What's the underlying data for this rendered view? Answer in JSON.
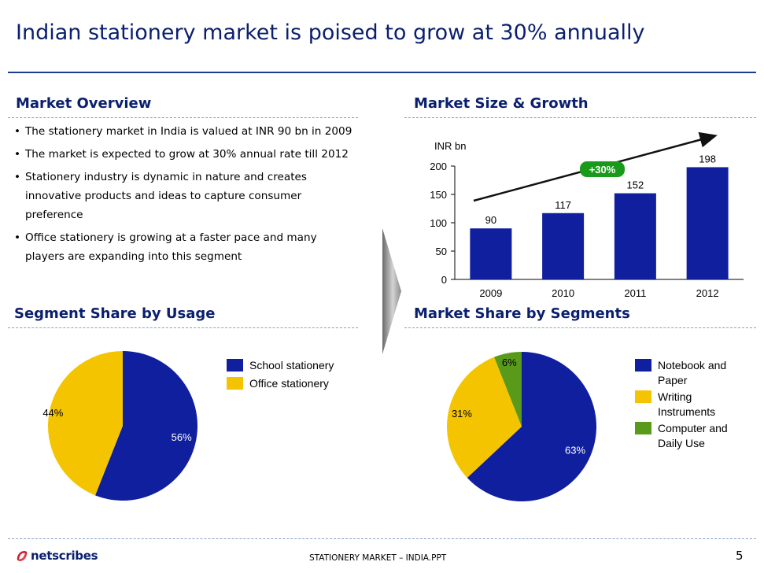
{
  "title": "Indian stationery market is poised to grow at 30% annually",
  "overview": {
    "heading": "Market Overview",
    "bullets": [
      "The stationery market  in India is valued at INR 90 bn in 2009",
      "The market is expected to grow at 30% annual rate till 2012",
      "Stationery industry is dynamic in nature and creates innovative products and ideas to capture consumer preference",
      "Office stationery is growing at a faster pace and many players are expanding into this segment"
    ]
  },
  "growth": {
    "heading": "Market Size & Growth"
  },
  "usage": {
    "heading": "Segment Share by Usage",
    "legend": [
      "School stationery",
      "Office stationery"
    ]
  },
  "segments": {
    "heading": "Market Share by Segments",
    "legend": [
      "Notebook and Paper",
      "Writing Instruments",
      "Computer and Daily Use"
    ]
  },
  "colors": {
    "blue": "#0f1f9e",
    "yellow": "#f5c400",
    "green": "#5a9a1a",
    "navy": "#0a1f6e",
    "growth_badge": "#1a9a1a"
  },
  "chart_data": [
    {
      "type": "bar",
      "title": "Market Size & Growth",
      "ylabel": "INR bn",
      "categories": [
        "2009",
        "2010",
        "2011",
        "2012"
      ],
      "values": [
        90,
        117,
        152,
        198
      ],
      "ylim": [
        0,
        200
      ],
      "yticks": [
        0,
        50,
        100,
        150,
        200
      ],
      "annotation": "+30%"
    },
    {
      "type": "pie",
      "title": "Segment Share by Usage",
      "labels": [
        "School stationery",
        "Office stationery"
      ],
      "values": [
        56,
        44
      ],
      "value_labels": [
        "56%",
        "44%"
      ]
    },
    {
      "type": "pie",
      "title": "Market Share by Segments",
      "labels": [
        "Notebook and Paper",
        "Writing Instruments",
        "Computer and Daily Use"
      ],
      "values": [
        63,
        31,
        6
      ],
      "value_labels": [
        "63%",
        "31%",
        "6%"
      ]
    }
  ],
  "footer": {
    "brand": "netscribes",
    "center": "STATIONERY MARKET – INDIA.PPT",
    "page": "5"
  }
}
